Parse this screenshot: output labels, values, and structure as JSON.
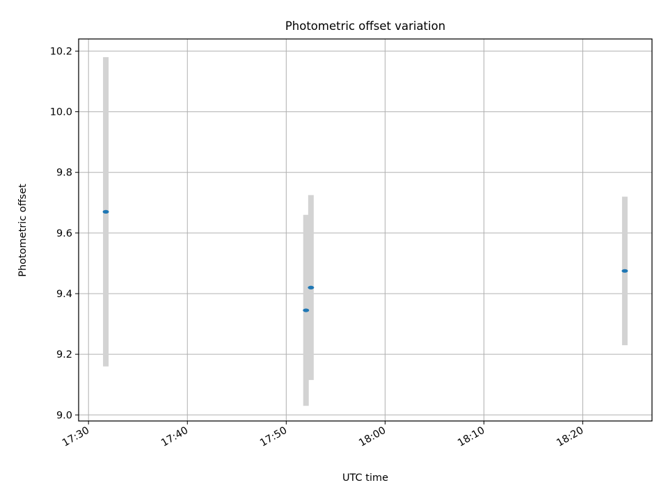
{
  "chart_data": {
    "type": "scatter",
    "title": "Photometric offset variation",
    "xlabel": "UTC time",
    "ylabel": "Photometric offset",
    "x_axis_type": "time",
    "xlim": [
      "17:29",
      "18:27"
    ],
    "ylim": [
      8.98,
      10.24
    ],
    "xticks": [
      "17:30",
      "17:40",
      "17:50",
      "18:00",
      "18:10",
      "18:20"
    ],
    "yticks": [
      "9.0",
      "9.2",
      "9.4",
      "9.6",
      "9.8",
      "10.0",
      "10.2"
    ],
    "grid": true,
    "legend": "none",
    "series": [
      {
        "points": [
          {
            "x": "17:31:45",
            "y": 9.67,
            "ylow": 9.16,
            "yhigh": 10.18
          },
          {
            "x": "17:52:00",
            "y": 9.345,
            "ylow": 9.03,
            "yhigh": 9.66
          },
          {
            "x": "17:52:30",
            "y": 9.42,
            "ylow": 9.115,
            "yhigh": 9.725
          },
          {
            "x": "18:24:15",
            "y": 9.475,
            "ylow": 9.23,
            "yhigh": 9.72
          }
        ]
      }
    ],
    "colors": {
      "marker": "#1f77b4",
      "errorbar": "#d3d3d3",
      "grid": "#b0b0b0",
      "axes": "#000000"
    }
  }
}
